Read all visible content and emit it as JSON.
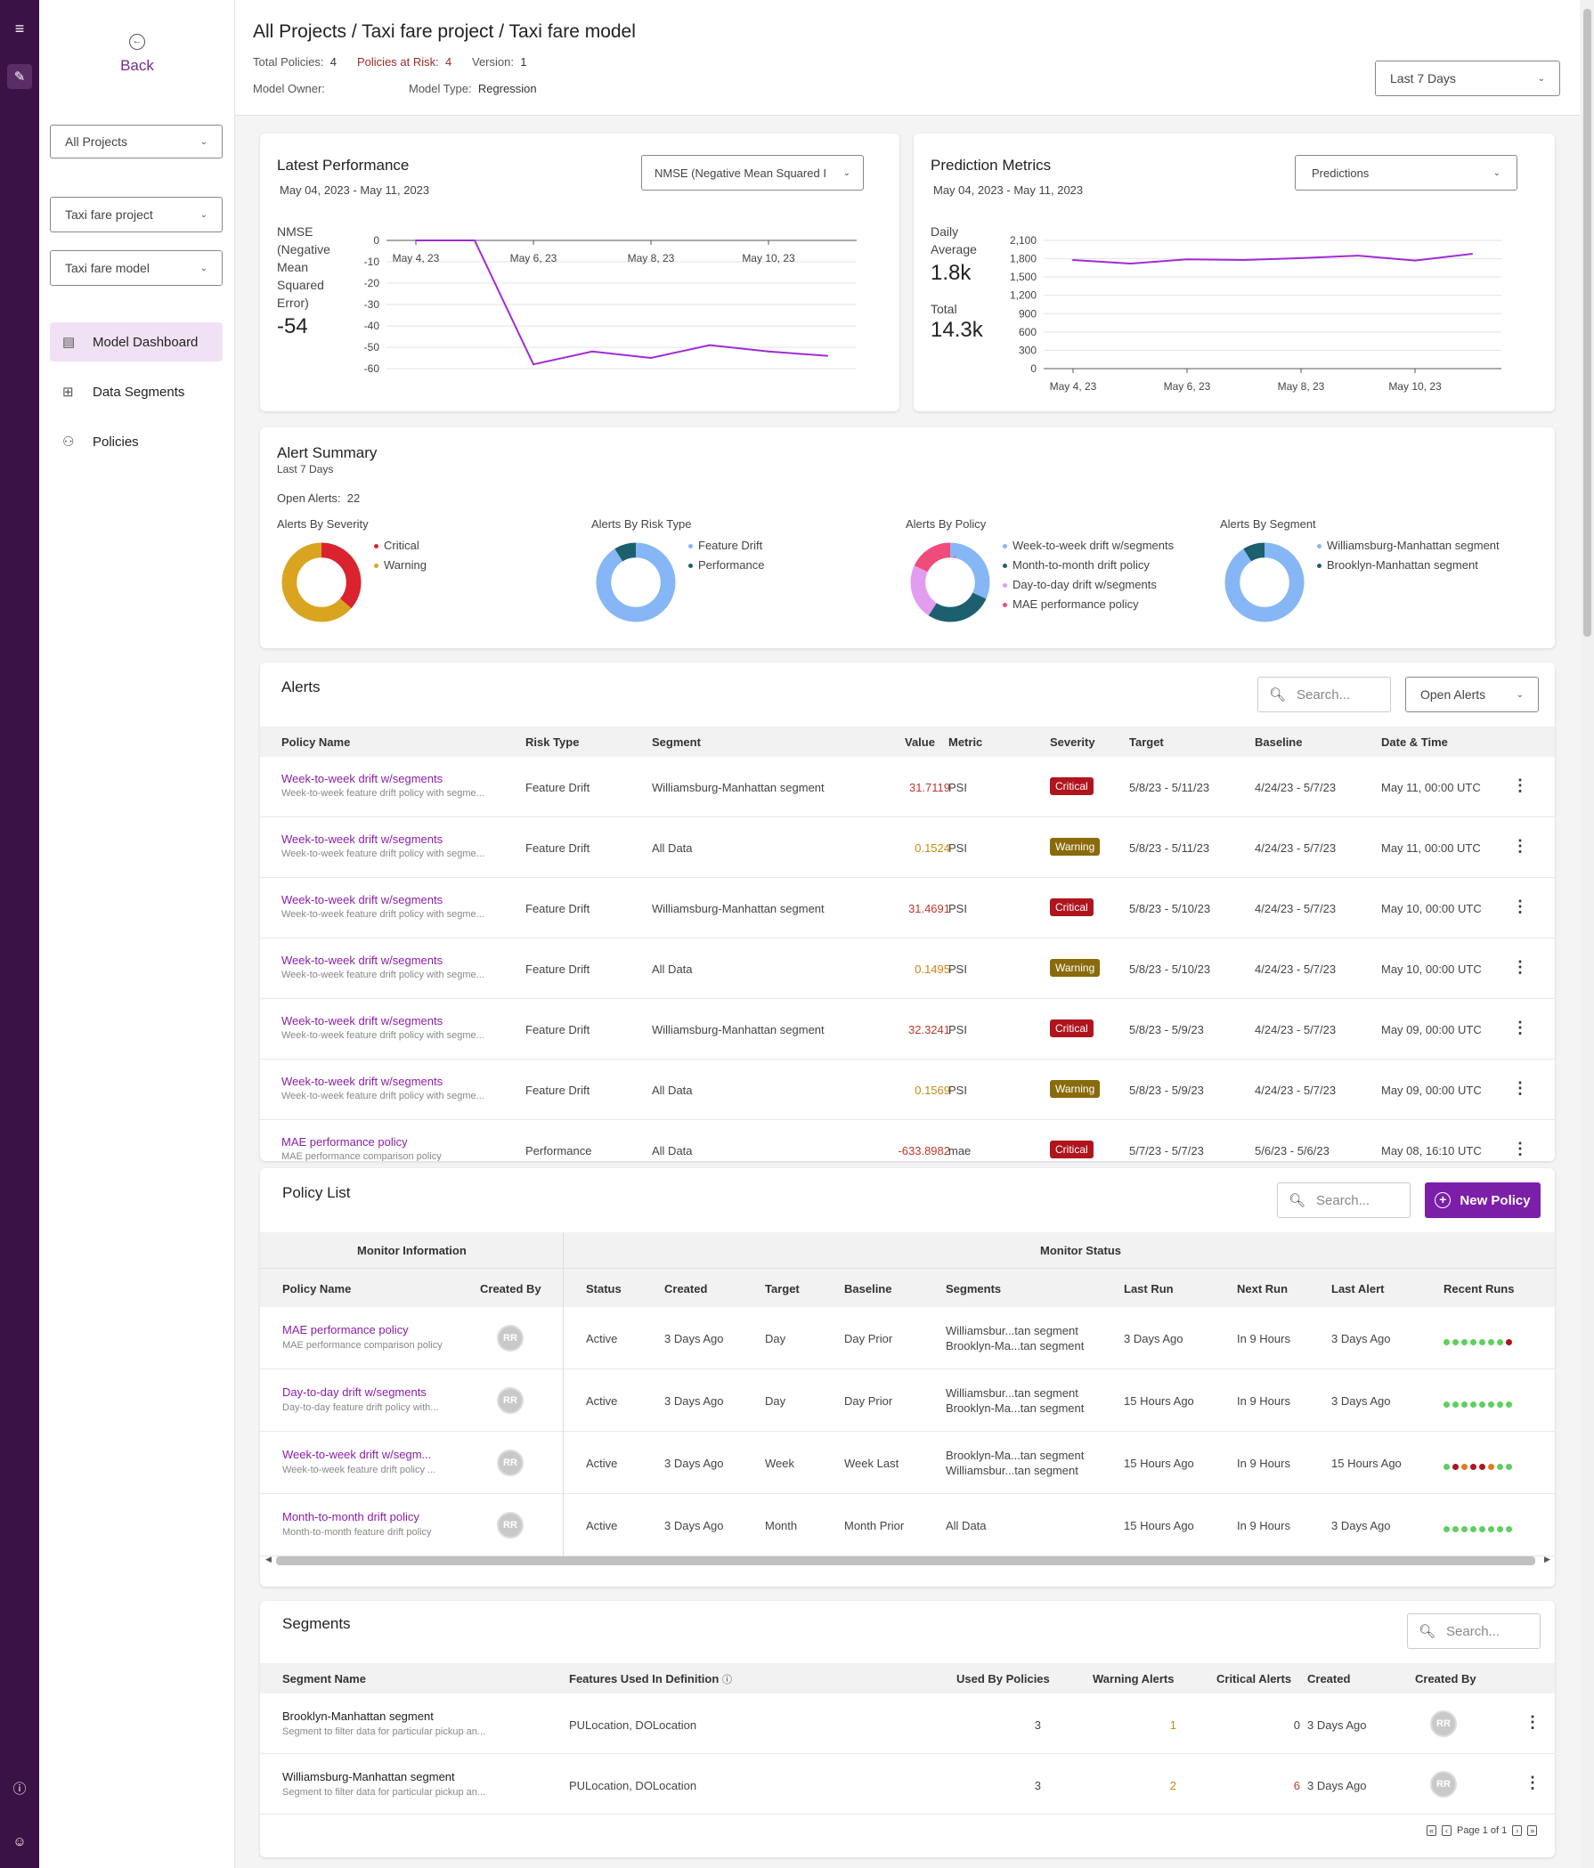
{
  "header": {
    "breadcrumb": "All Projects / Taxi fare project / Taxi fare model",
    "total_policies_label": "Total Policies:",
    "total_policies": "4",
    "at_risk_label": "Policies at Risk:",
    "at_risk": "4",
    "version_label": "Version:",
    "version": "1",
    "owner_label": "Model Owner:",
    "owner": "",
    "type_label": "Model Type:",
    "type": "Regression",
    "range_select": "Last 7 Days"
  },
  "sidebar": {
    "back": "Back",
    "project_filter": "All Projects",
    "project": "Taxi fare project",
    "model": "Taxi fare model",
    "items": [
      {
        "label": "Model Dashboard",
        "icon": "dashboard-icon"
      },
      {
        "label": "Data Segments",
        "icon": "segments-icon"
      },
      {
        "label": "Policies",
        "icon": "policies-icon"
      }
    ]
  },
  "latest_performance": {
    "title": "Latest Performance",
    "range": "May 04, 2023 - May 11, 2023",
    "metric_select": "NMSE (Negative Mean Squared I",
    "metric_name": "NMSE (Negative Mean Squared Error)",
    "metric_value": "-54"
  },
  "prediction_metrics": {
    "title": "Prediction Metrics",
    "range": "May 04, 2023 - May 11, 2023",
    "select": "Predictions",
    "daily_label": "Daily Average",
    "daily_value": "1.8k",
    "total_label": "Total",
    "total_value": "14.3k"
  },
  "chart_data": [
    {
      "type": "line",
      "title": "Latest Performance",
      "x": [
        "May 4, 23",
        "May 5, 23",
        "May 6, 23",
        "May 7, 23",
        "May 8, 23",
        "May 9, 23",
        "May 10, 23",
        "May 11, 23"
      ],
      "xticks": [
        "May 4, 23",
        "May 6, 23",
        "May 8, 23",
        "May 10, 23"
      ],
      "series": [
        {
          "name": "NMSE (Negative Mean Squared Error)",
          "values": [
            0,
            0,
            -58,
            -52,
            -55,
            -49,
            -52,
            -54
          ]
        }
      ],
      "yticks": [
        0,
        -10,
        -20,
        -30,
        -40,
        -50,
        -60
      ],
      "ylim": [
        -60,
        0
      ],
      "color": "#a12bd6"
    },
    {
      "type": "line",
      "title": "Prediction Metrics",
      "x": [
        "May 4, 23",
        "May 5, 23",
        "May 6, 23",
        "May 7, 23",
        "May 8, 23",
        "May 9, 23",
        "May 10, 23",
        "May 11, 23"
      ],
      "xticks": [
        "May 4, 23",
        "May 6, 23",
        "May 8, 23",
        "May 10, 23"
      ],
      "series": [
        {
          "name": "Predictions",
          "values": [
            1780,
            1720,
            1790,
            1780,
            1810,
            1850,
            1770,
            1880
          ]
        }
      ],
      "yticks": [
        0,
        300,
        600,
        900,
        1200,
        1500,
        1800,
        2100
      ],
      "ytick_labels": [
        "0",
        "300",
        "600",
        "900",
        "1,200",
        "1,500",
        "1,800",
        "2,100"
      ],
      "ylim": [
        0,
        2100
      ],
      "color": "#a12bd6"
    },
    {
      "type": "pie",
      "title": "Alerts By Severity",
      "labels": [
        "Critical",
        "Warning"
      ],
      "values": [
        8,
        14
      ],
      "colors": [
        "#d9232f",
        "#d9a520"
      ]
    },
    {
      "type": "pie",
      "title": "Alerts By Risk Type",
      "labels": [
        "Feature Drift",
        "Performance"
      ],
      "values": [
        20,
        2
      ],
      "colors": [
        "#86b6f6",
        "#1c5f6e"
      ]
    },
    {
      "type": "pie",
      "title": "Alerts By Policy",
      "labels": [
        "Week-to-week drift w/segments",
        "Month-to-month drift policy",
        "Day-to-day drift w/segments",
        "MAE performance policy"
      ],
      "values": [
        7,
        6,
        5,
        4
      ],
      "colors": [
        "#86b6f6",
        "#1c5f6e",
        "#e29cf0",
        "#ef4c7b"
      ]
    },
    {
      "type": "pie",
      "title": "Alerts By Segment",
      "labels": [
        "Williamsburg-Manhattan segment",
        "Brooklyn-Manhattan segment"
      ],
      "values": [
        20,
        2
      ],
      "colors": [
        "#86b6f6",
        "#1c5f6e"
      ]
    }
  ],
  "alert_summary": {
    "title": "Alert Summary",
    "period": "Last 7 Days",
    "open_label": "Open Alerts:",
    "open_count": "22"
  },
  "alerts": {
    "title": "Alerts",
    "search_placeholder": "Search...",
    "filter": "Open Alerts",
    "columns": [
      "Policy Name",
      "Risk Type",
      "Segment",
      "Value",
      "Metric",
      "Severity",
      "Target",
      "Baseline",
      "Date & Time"
    ],
    "rows": [
      {
        "name": "Week-to-week drift w/segments",
        "desc": "Week-to-week feature drift policy with segme...",
        "risk": "Feature Drift",
        "segment": "Williamsburg-Manhattan segment",
        "value": "31.7119",
        "metric": "PSI",
        "severity": "Critical",
        "target": "5/8/23 - 5/11/23",
        "baseline": "4/24/23 - 5/7/23",
        "date": "May 11, 00:00 UTC"
      },
      {
        "name": "Week-to-week drift w/segments",
        "desc": "Week-to-week feature drift policy with segme...",
        "risk": "Feature Drift",
        "segment": "All Data",
        "value": "0.1524",
        "metric": "PSI",
        "severity": "Warning",
        "target": "5/8/23 - 5/11/23",
        "baseline": "4/24/23 - 5/7/23",
        "date": "May 11, 00:00 UTC"
      },
      {
        "name": "Week-to-week drift w/segments",
        "desc": "Week-to-week feature drift policy with segme...",
        "risk": "Feature Drift",
        "segment": "Williamsburg-Manhattan segment",
        "value": "31.4691",
        "metric": "PSI",
        "severity": "Critical",
        "target": "5/8/23 - 5/10/23",
        "baseline": "4/24/23 - 5/7/23",
        "date": "May 10, 00:00 UTC"
      },
      {
        "name": "Week-to-week drift w/segments",
        "desc": "Week-to-week feature drift policy with segme...",
        "risk": "Feature Drift",
        "segment": "All Data",
        "value": "0.1495",
        "metric": "PSI",
        "severity": "Warning",
        "target": "5/8/23 - 5/10/23",
        "baseline": "4/24/23 - 5/7/23",
        "date": "May 10, 00:00 UTC"
      },
      {
        "name": "Week-to-week drift w/segments",
        "desc": "Week-to-week feature drift policy with segme...",
        "risk": "Feature Drift",
        "segment": "Williamsburg-Manhattan segment",
        "value": "32.3241",
        "metric": "PSI",
        "severity": "Critical",
        "target": "5/8/23 - 5/9/23",
        "baseline": "4/24/23 - 5/7/23",
        "date": "May 09, 00:00 UTC"
      },
      {
        "name": "Week-to-week drift w/segments",
        "desc": "Week-to-week feature drift policy with segme...",
        "risk": "Feature Drift",
        "segment": "All Data",
        "value": "0.1569",
        "metric": "PSI",
        "severity": "Warning",
        "target": "5/8/23 - 5/9/23",
        "baseline": "4/24/23 - 5/7/23",
        "date": "May 09, 00:00 UTC"
      },
      {
        "name": "MAE performance policy",
        "desc": "MAE performance comparison policy",
        "risk": "Performance",
        "segment": "All Data",
        "value": "-633.8982",
        "metric": "mae",
        "severity": "Critical",
        "target": "5/7/23 - 5/7/23",
        "baseline": "5/6/23 - 5/6/23",
        "date": "May 08, 16:10 UTC"
      }
    ]
  },
  "policy_list": {
    "title": "Policy List",
    "search_placeholder": "Search...",
    "new_button": "New Policy",
    "group_info": "Monitor Information",
    "group_status": "Monitor Status",
    "columns": [
      "Policy Name",
      "Created By",
      "Status",
      "Created",
      "Target",
      "Baseline",
      "Segments",
      "Last Run",
      "Next Run",
      "Last Alert",
      "Recent Runs"
    ],
    "rows": [
      {
        "name": "MAE performance policy",
        "desc": "MAE performance comparison policy",
        "by": "RR",
        "status": "Active",
        "created": "3 Days Ago",
        "target": "Day",
        "baseline": "Day Prior",
        "seg1": "Williamsbur...tan segment",
        "seg2": "Brooklyn-Ma...tan segment",
        "last": "3 Days Ago",
        "next": "In 9 Hours",
        "alert": "3 Days Ago",
        "runs": [
          "g",
          "g",
          "g",
          "g",
          "g",
          "g",
          "g",
          "r"
        ]
      },
      {
        "name": "Day-to-day drift w/segments",
        "desc": "Day-to-day feature drift policy with...",
        "by": "RR",
        "status": "Active",
        "created": "3 Days Ago",
        "target": "Day",
        "baseline": "Day Prior",
        "seg1": "Williamsbur...tan segment",
        "seg2": "Brooklyn-Ma...tan segment",
        "last": "15 Hours Ago",
        "next": "In 9 Hours",
        "alert": "3 Days Ago",
        "runs": [
          "g",
          "g",
          "g",
          "g",
          "g",
          "g",
          "g",
          "g"
        ]
      },
      {
        "name": "Week-to-week drift w/segm...",
        "desc": "Week-to-week feature drift policy ...",
        "by": "RR",
        "status": "Active",
        "created": "3 Days Ago",
        "target": "Week",
        "baseline": "Week Last",
        "seg1": "Brooklyn-Ma...tan segment",
        "seg2": "Williamsbur...tan segment",
        "last": "15 Hours Ago",
        "next": "In 9 Hours",
        "alert": "15 Hours Ago",
        "runs": [
          "g",
          "r",
          "o",
          "r",
          "r",
          "o",
          "g",
          "g"
        ]
      },
      {
        "name": "Month-to-month drift policy",
        "desc": "Month-to-month feature drift policy",
        "by": "RR",
        "status": "Active",
        "created": "3 Days Ago",
        "target": "Month",
        "baseline": "Month Prior",
        "seg1": "All Data",
        "seg2": "",
        "last": "15 Hours Ago",
        "next": "In 9 Hours",
        "alert": "3 Days Ago",
        "runs": [
          "g",
          "g",
          "g",
          "g",
          "g",
          "g",
          "g",
          "g"
        ]
      }
    ]
  },
  "segments": {
    "title": "Segments",
    "search_placeholder": "Search...",
    "columns": [
      "Segment Name",
      "Features Used In Definition",
      "Used By Policies",
      "Warning Alerts",
      "Critical Alerts",
      "Created",
      "Created By"
    ],
    "rows": [
      {
        "name": "Brooklyn-Manhattan segment",
        "desc": "Segment to filter data for particular pickup an...",
        "features": "PULocation, DOLocation",
        "used": "3",
        "warn": "1",
        "crit": "0",
        "created": "3 Days Ago",
        "by": "RR"
      },
      {
        "name": "Williamsburg-Manhattan segment",
        "desc": "Segment to filter data for particular pickup an...",
        "features": "PULocation, DOLocation",
        "used": "3",
        "warn": "2",
        "crit": "6",
        "created": "3 Days Ago",
        "by": "RR"
      }
    ],
    "pagination": "Page 1 of 1"
  }
}
